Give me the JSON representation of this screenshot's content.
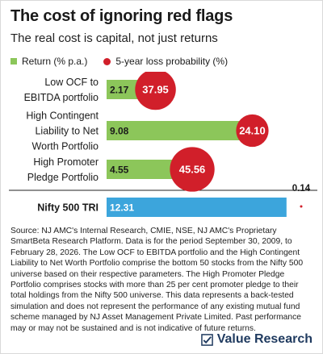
{
  "title": "The cost of ignoring red flags",
  "subtitle": "The real cost is capital, not just returns",
  "legend": {
    "return_label": "Return (% p.a.)",
    "loss_label": "5-year loss probability (%)"
  },
  "colors": {
    "return_bar": "#8cc65a",
    "benchmark_bar": "#3ca5dc",
    "loss_circle": "#d11f2a"
  },
  "chart_data": {
    "type": "bar",
    "orientation": "horizontal",
    "title": "The cost of ignoring red flags",
    "subtitle": "The real cost is capital, not just returns",
    "categories": [
      [
        "Low OCF to",
        "EBITDA portfolio"
      ],
      [
        "High Contingent",
        "Liability to Net",
        "Worth Portfolio"
      ],
      [
        "High Promoter",
        "Pledge Portfolio"
      ],
      [
        "Nifty 500 TRI"
      ]
    ],
    "category_bold": [
      false,
      false,
      false,
      true
    ],
    "series": [
      {
        "name": "Return (% p.a.)",
        "values": [
          2.17,
          9.08,
          4.55,
          12.31
        ],
        "labels": [
          "2.17",
          "9.08",
          "4.55",
          "12.31"
        ]
      },
      {
        "name": "5-year loss probability (%)",
        "values": [
          37.95,
          24.1,
          45.56,
          0.14
        ],
        "labels": [
          "37.95",
          "24.10",
          "45.56",
          "0.14"
        ]
      }
    ],
    "legend": "top-left",
    "grid": false
  },
  "source": "Source: NJ AMC's Internal Research, CMIE, NSE, NJ AMC's Proprietary SmartBeta Research Platform. Data is for the period September 30, 2009, to February 28, 2026. The Low OCF to EBITDA portfolio and the High Contingent Liability to Net Worth Portfolio comprise the bottom 50 stocks from the Nifty 500 universe based on their respective parameters. The High Promoter Pledge Portfolio comprises stocks with more than 25 per cent promoter pledge to their total holdings from the Nifty 500 universe. This data represents a back-tested simulation and does not represent the performance of any existing mutual fund scheme managed by NJ Asset Management Private Limited. Past performance may or may not be sustained and is not indicative of future returns.",
  "brand": "Value Research"
}
